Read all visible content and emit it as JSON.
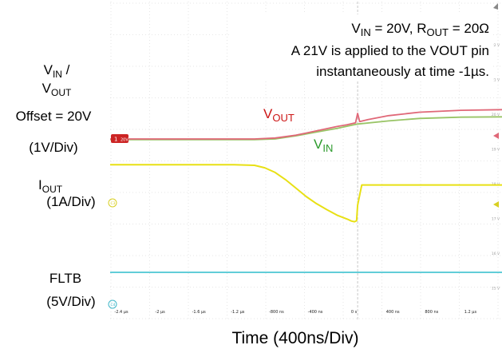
{
  "left_labels": {
    "vin_vout_v1": "V",
    "vin_vout_s1": "IN",
    "vin_vout_mid": " /",
    "vin_vout_v2": "V",
    "vin_vout_s2": "OUT",
    "offset": "Offset = 20V",
    "vscale": "(1V/Div)",
    "iout_i": "I",
    "iout_s": "OUT",
    "iscale": "(1A/Div)",
    "fltb": "FLTB",
    "fltb_scale": "(5V/Div)"
  },
  "annotation": {
    "line1_v": "V",
    "line1_vsub": "IN",
    "line1_mid": " = 20V, R",
    "line1_rsub": "OUT",
    "line1_end": " = 20Ω",
    "line2": "A 21V is applied to the VOUT pin",
    "line3": "instantaneously at time -1µs."
  },
  "trace_labels": {
    "vout_v": "V",
    "vout_sub": "OUT",
    "vin_v": "V",
    "vin_sub": "IN"
  },
  "xlabel": "Time (400ns/Div)",
  "colors": {
    "vout": "#e06878",
    "vout_label": "#cc1414",
    "vin": "#99c466",
    "vin_label": "#2b9a2b",
    "iout": "#e8e014",
    "fltb": "#4cc6d2",
    "grid": "#cccccc",
    "marker_red": "#cc2424",
    "marker_yellow": "#d8cf22",
    "marker_cyan": "#3fb6c8"
  },
  "markers": {
    "ch1": "1",
    "ch1_text": "20V",
    "ch3": "C3",
    "ch4": "C4"
  },
  "chart_data": {
    "type": "line",
    "x_unit": "ns",
    "xlim": [
      -2400,
      1400
    ],
    "x_tick_labels": [
      "-2.4 µs",
      "-2 µs",
      "-1.6 µs",
      "-1.2 µs",
      "-800 ns",
      "-400 ns",
      "0 s",
      "400 ns",
      "800 ns",
      "1.2 µs"
    ],
    "right_tick_labels": [
      "22 V",
      "21 V",
      "20 V",
      "19 V",
      "18 V",
      "17 V",
      "16 V",
      "15 V"
    ],
    "series": [
      {
        "name": "VOUT",
        "scale": "1V/Div",
        "x": [
          -2400,
          -1200,
          -1000,
          -800,
          -600,
          -400,
          -200,
          -100,
          -20,
          0,
          20,
          100,
          300,
          600,
          1000,
          1400
        ],
        "y": [
          20.0,
          20.0,
          20.0,
          20.03,
          20.12,
          20.26,
          20.4,
          20.46,
          20.52,
          20.82,
          20.56,
          20.62,
          20.75,
          20.86,
          20.92,
          20.94
        ]
      },
      {
        "name": "VIN",
        "scale": "1V/Div",
        "x": [
          -2400,
          -1200,
          -1000,
          -800,
          -600,
          -400,
          -200,
          0,
          300,
          600,
          1000,
          1400
        ],
        "y": [
          19.98,
          19.98,
          19.98,
          20.0,
          20.1,
          20.22,
          20.34,
          20.48,
          20.58,
          20.66,
          20.7,
          20.71
        ]
      },
      {
        "name": "IOUT",
        "scale": "1A/Div",
        "x": [
          -2400,
          -1200,
          -1000,
          -900,
          -800,
          -700,
          -600,
          -500,
          -400,
          -300,
          -200,
          -100,
          -60,
          -30,
          -10,
          0,
          40,
          1400
        ],
        "y": [
          3.2,
          3.2,
          3.18,
          3.1,
          2.95,
          2.72,
          2.45,
          2.18,
          1.95,
          1.76,
          1.58,
          1.45,
          1.39,
          1.37,
          1.4,
          1.9,
          2.55,
          2.55
        ]
      },
      {
        "name": "FLTB",
        "scale": "5V/Div",
        "x": [
          -2400,
          1400
        ],
        "y": [
          0,
          0
        ]
      }
    ]
  }
}
